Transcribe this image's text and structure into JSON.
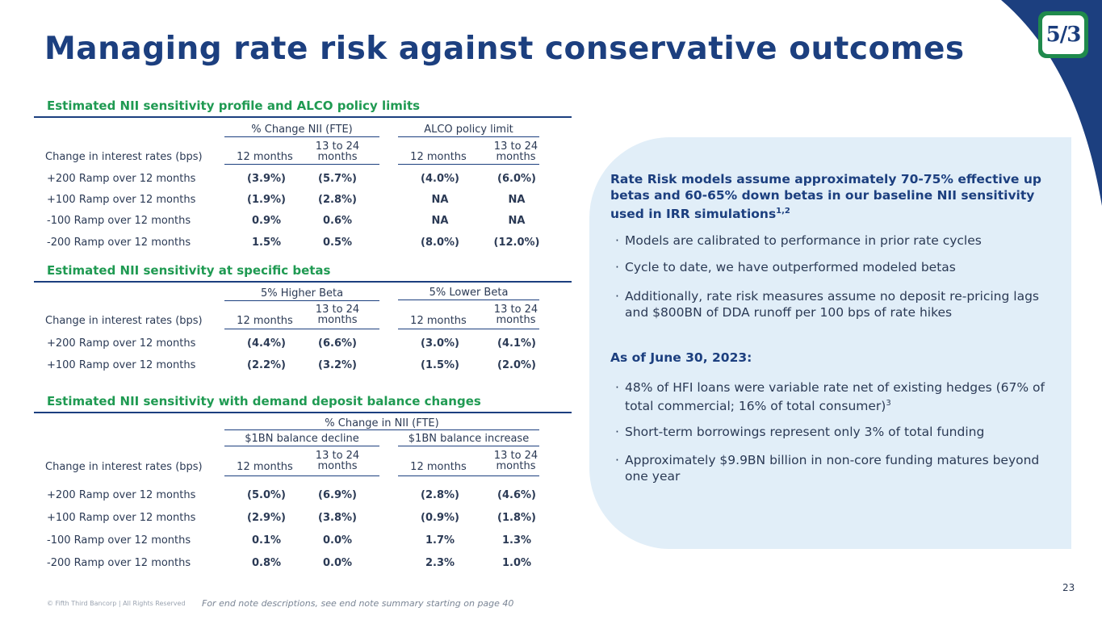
{
  "title": "Managing rate risk against conservative outcomes",
  "logo": {
    "text": "5/3"
  },
  "colors": {
    "navy": "#1c3f7f",
    "green": "#1f9a52",
    "panel": "#e1eef8"
  },
  "table1": {
    "heading": "Estimated NII sensitivity profile and ALCO policy limits",
    "group1": "% Change NII (FTE)",
    "group2": "ALCO policy limit",
    "col_label": "Change in interest rates (bps)",
    "c1": "12 months",
    "c2a": "13 to 24",
    "c2b": "months",
    "c3": "12 months",
    "c4a": "13 to 24",
    "c4b": "months",
    "rows": [
      {
        "label": "+200 Ramp over 12 months",
        "v1": "(3.9%)",
        "v2": "(5.7%)",
        "v3": "(4.0%)",
        "v4": "(6.0%)"
      },
      {
        "label": "+100 Ramp over 12 months",
        "v1": "(1.9%)",
        "v2": "(2.8%)",
        "v3": "NA",
        "v4": "NA"
      },
      {
        "label": "-100 Ramp over 12 months",
        "v1": "0.9%",
        "v2": "0.6%",
        "v3": "NA",
        "v4": "NA"
      },
      {
        "label": "-200 Ramp over 12 months",
        "v1": "1.5%",
        "v2": "0.5%",
        "v3": "(8.0%)",
        "v4": "(12.0%)"
      }
    ]
  },
  "table2": {
    "heading": "Estimated NII sensitivity at specific betas",
    "group1": "5% Higher Beta",
    "group2": "5% Lower Beta",
    "col_label": "Change in interest rates (bps)",
    "c1": "12 months",
    "c2a": "13 to 24",
    "c2b": "months",
    "c3": "12 months",
    "c4a": "13 to 24",
    "c4b": "months",
    "rows": [
      {
        "label": "+200 Ramp over 12 months",
        "v1": "(4.4%)",
        "v2": "(6.6%)",
        "v3": "(3.0%)",
        "v4": "(4.1%)"
      },
      {
        "label": "+100 Ramp over 12 months",
        "v1": "(2.2%)",
        "v2": "(3.2%)",
        "v3": "(1.5%)",
        "v4": "(2.0%)"
      }
    ]
  },
  "table3": {
    "heading": "Estimated NII sensitivity with demand deposit balance changes",
    "supergroup": "% Change in NII (FTE)",
    "group1": "$1BN balance decline",
    "group2": "$1BN balance increase",
    "col_label": "Change in interest rates (bps)",
    "c1": "12 months",
    "c2a": "13 to 24",
    "c2b": "months",
    "c3": "12 months",
    "c4a": "13 to 24",
    "c4b": "months",
    "rows": [
      {
        "label": "+200 Ramp over 12 months",
        "v1": "(5.0%)",
        "v2": "(6.9%)",
        "v3": "(2.8%)",
        "v4": "(4.6%)"
      },
      {
        "label": "+100 Ramp over 12 months",
        "v1": "(2.9%)",
        "v2": "(3.8%)",
        "v3": "(0.9%)",
        "v4": "(1.8%)"
      },
      {
        "label": "-100 Ramp over 12 months",
        "v1": "0.1%",
        "v2": "0.0%",
        "v3": "1.7%",
        "v4": "1.3%"
      },
      {
        "label": "-200 Ramp over 12 months",
        "v1": "0.8%",
        "v2": "0.0%",
        "v3": "2.3%",
        "v4": "1.0%"
      }
    ]
  },
  "panel": {
    "heading1": "Rate Risk models assume approximately 70-75% effective up betas and 60-65% down betas in our baseline NII sensitivity used in IRR simulations",
    "heading1_sup": "1,2",
    "bullets1": [
      "Models are calibrated to performance in prior rate cycles",
      "Cycle to date, we have outperformed modeled betas",
      "Additionally, rate risk measures assume no deposit re-pricing lags and $800BN of DDA runoff per 100 bps of rate hikes"
    ],
    "heading2": "As of June 30, 2023:",
    "bullet2_1": "48% of HFI loans were variable rate net of existing hedges (67% of total commercial; 16% of total consumer)",
    "bullet2_1_sup": "3",
    "bullet2_2": "Short-term borrowings represent only 3% of total funding",
    "bullet2_3": "Approximately $9.9BN billion in non-core funding matures beyond one year",
    "bullet_mark": "·"
  },
  "footer": {
    "copyright": "© Fifth Third Bancorp | All Rights Reserved",
    "note": "For end note descriptions, see end note summary starting on page 40",
    "page": "23"
  }
}
